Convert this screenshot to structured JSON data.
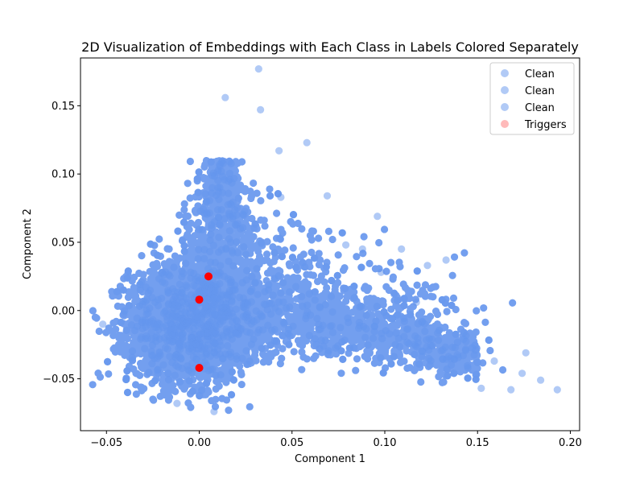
{
  "chart_data": {
    "type": "scatter",
    "title": "2D Visualization of Embeddings with Each Class in Labels Colored Separately",
    "xlabel": "Component 1",
    "ylabel": "Component 2",
    "xlim": [
      -0.064,
      0.205
    ],
    "ylim": [
      -0.088,
      0.185
    ],
    "xticks": [
      -0.05,
      0.0,
      0.05,
      0.1,
      0.15,
      0.2
    ],
    "xtick_labels": [
      "−0.05",
      "0.00",
      "0.05",
      "0.10",
      "0.15",
      "0.20"
    ],
    "yticks": [
      -0.05,
      0.0,
      0.05,
      0.1,
      0.15
    ],
    "ytick_labels": [
      "−0.05",
      "0.00",
      "0.05",
      "0.10",
      "0.15"
    ],
    "grid": false,
    "legend_position": "top-right",
    "colors": {
      "clean": "#6495ED",
      "triggers": "#FF0000",
      "triggers_legend": "#FFB3B3"
    },
    "series": [
      {
        "name": "Clean",
        "color": "#6495ED",
        "alpha": 0.5,
        "count_estimate": 20000
      },
      {
        "name": "Clean",
        "color": "#6495ED",
        "alpha": 0.5
      },
      {
        "name": "Clean",
        "color": "#6495ED",
        "alpha": 0.5
      },
      {
        "name": "Triggers",
        "color": "#FF0000",
        "points": [
          {
            "x": 0.005,
            "y": 0.025
          },
          {
            "x": 0.0,
            "y": 0.008
          },
          {
            "x": 0.0,
            "y": -0.042
          }
        ]
      }
    ],
    "outliers": [
      {
        "x": 0.032,
        "y": 0.177
      },
      {
        "x": 0.014,
        "y": 0.156
      },
      {
        "x": 0.033,
        "y": 0.147
      },
      {
        "x": 0.058,
        "y": 0.123
      },
      {
        "x": 0.043,
        "y": 0.117
      },
      {
        "x": 0.069,
        "y": 0.084
      },
      {
        "x": 0.096,
        "y": 0.069
      },
      {
        "x": -0.052,
        "y": -0.01
      },
      {
        "x": 0.193,
        "y": -0.058
      },
      {
        "x": 0.184,
        "y": -0.051
      },
      {
        "x": 0.176,
        "y": -0.031
      },
      {
        "x": 0.174,
        "y": -0.046
      },
      {
        "x": 0.168,
        "y": -0.058
      },
      {
        "x": 0.159,
        "y": -0.037
      },
      {
        "x": 0.152,
        "y": -0.057
      },
      {
        "x": 0.133,
        "y": 0.037
      },
      {
        "x": 0.123,
        "y": 0.033
      },
      {
        "x": 0.109,
        "y": 0.045
      },
      {
        "x": 0.098,
        "y": 0.028
      },
      {
        "x": 0.105,
        "y": 0.012
      },
      {
        "x": 0.008,
        "y": -0.074
      },
      {
        "x": -0.012,
        "y": -0.068
      },
      {
        "x": 0.044,
        "y": 0.083
      },
      {
        "x": 0.079,
        "y": 0.048
      },
      {
        "x": 0.088,
        "y": 0.045
      },
      {
        "x": 0.117,
        "y": 0.006
      }
    ]
  }
}
